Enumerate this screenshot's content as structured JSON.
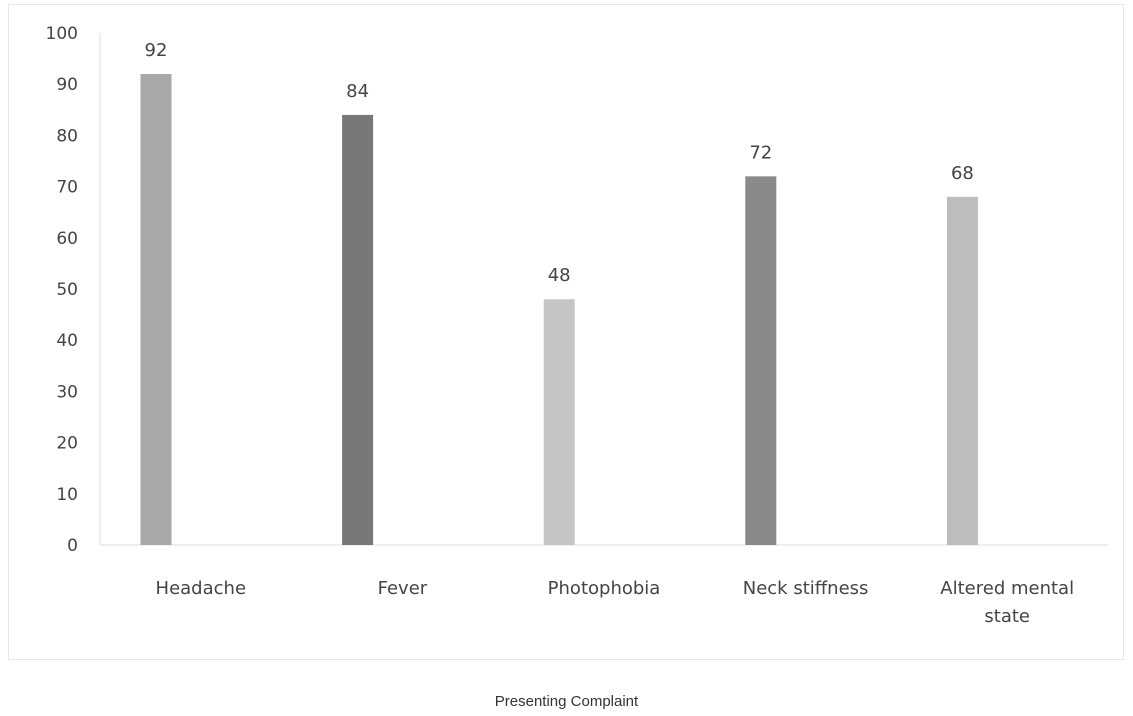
{
  "chart_data": {
    "type": "bar",
    "title": "",
    "xlabel": "Presenting Complaint",
    "ylabel": "",
    "ylim": [
      0,
      100
    ],
    "yticks": [
      0,
      10,
      20,
      30,
      40,
      50,
      60,
      70,
      80,
      90,
      100
    ],
    "grid": false,
    "legend": "none",
    "categories": [
      [
        "Headache"
      ],
      [
        "Fever"
      ],
      [
        "Photophobia"
      ],
      [
        "Neck stiffness"
      ],
      [
        "Altered mental",
        "state"
      ]
    ],
    "values": [
      92,
      84,
      48,
      72,
      68
    ],
    "colors": [
      "#a9a9a9",
      "#777777",
      "#c6c6c6",
      "#8a8a8a",
      "#bdbdbd"
    ],
    "axis_color": "#dcdcdc"
  }
}
